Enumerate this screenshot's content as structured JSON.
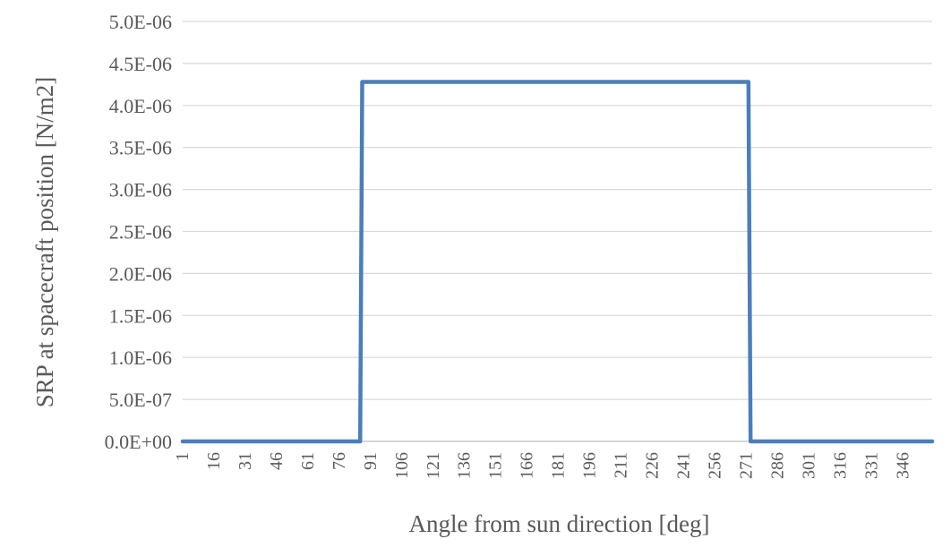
{
  "chart_data": {
    "type": "line",
    "title": "",
    "xlabel": "Angle from sun direction [deg]",
    "ylabel": "SRP at spacecraft position [N/m2]",
    "x_tick_labels": [
      "1",
      "16",
      "31",
      "46",
      "61",
      "76",
      "91",
      "106",
      "121",
      "136",
      "151",
      "166",
      "181",
      "196",
      "211",
      "226",
      "241",
      "256",
      "271",
      "286",
      "301",
      "316",
      "331",
      "346"
    ],
    "x_range": [
      1,
      360
    ],
    "y_tick_labels": [
      "0.0E+00",
      "5.0E-07",
      "1.0E-06",
      "1.5E-06",
      "2.0E-06",
      "2.5E-06",
      "3.0E-06",
      "3.5E-06",
      "4.0E-06",
      "4.5E-06",
      "5.0E-06"
    ],
    "ylim": [
      0,
      5e-06
    ],
    "grid": true,
    "series": [
      {
        "x": [
          1,
          86,
          87,
          272,
          273,
          360
        ],
        "values": [
          0,
          0,
          4.28e-06,
          4.28e-06,
          0,
          0
        ],
        "color": "#4a7ebb"
      }
    ]
  }
}
